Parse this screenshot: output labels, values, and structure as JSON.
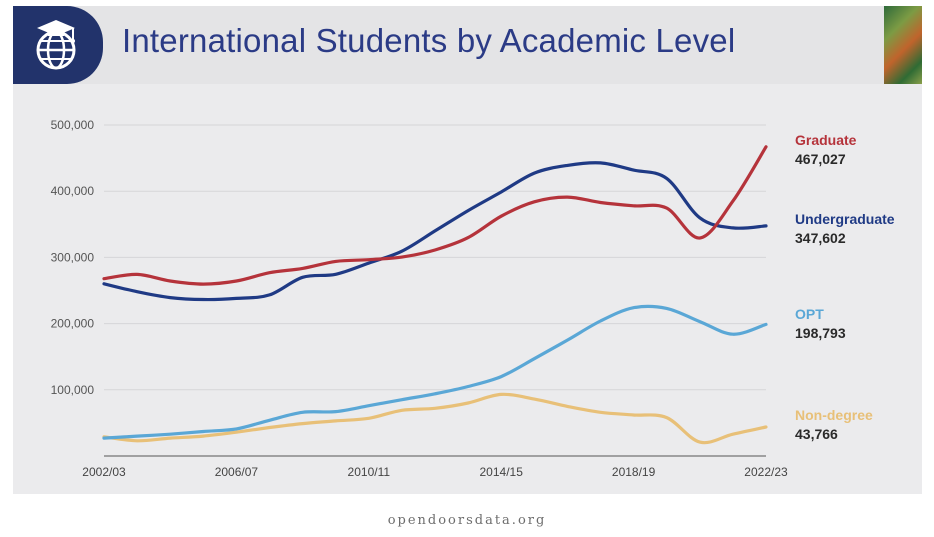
{
  "header": {
    "title": "International Students by Academic Level",
    "logo": "globe-graduation-cap-icon"
  },
  "footer": {
    "source": "opendoorsdata.org"
  },
  "chart_data": {
    "type": "line",
    "title": "International Students by Academic Level",
    "x": [
      "2002/03",
      "2003/04",
      "2004/05",
      "2005/06",
      "2006/07",
      "2007/08",
      "2008/09",
      "2009/10",
      "2010/11",
      "2011/12",
      "2012/13",
      "2013/14",
      "2014/15",
      "2015/16",
      "2016/17",
      "2017/18",
      "2018/19",
      "2019/20",
      "2020/21",
      "2021/22",
      "2022/23"
    ],
    "x_tick_labels": [
      "2002/03",
      "2006/07",
      "2010/11",
      "2014/15",
      "2018/19",
      "2022/23"
    ],
    "ylim": [
      0,
      500000
    ],
    "y_ticks": [
      100000,
      200000,
      300000,
      400000,
      500000
    ],
    "y_tick_labels": [
      "100,000",
      "200,000",
      "300,000",
      "400,000",
      "500,000"
    ],
    "grid": true,
    "legend": "end-labels-right",
    "series": [
      {
        "name": "Graduate",
        "color": "#b5333b",
        "end_label": "467,027",
        "values": [
          267876,
          274310,
          264410,
          259717,
          264288,
          276842,
          283329,
          293885,
          296574,
          300430,
          311204,
          329854,
          362228,
          383935,
          391124,
          382953,
          377943,
          374435,
          329272,
          385097,
          467027
        ]
      },
      {
        "name": "Undergraduate",
        "color": "#1f3a85",
        "end_label": "347,602",
        "values": [
          260103,
          248200,
          239212,
          236342,
          238050,
          243360,
          269874,
          274431,
          291439,
          309342,
          339993,
          370724,
          398824,
          427313,
          439019,
          442746,
          431930,
          419321,
          359787,
          344532,
          347602
        ]
      },
      {
        "name": "OPT",
        "color": "#5aa7d6",
        "end_label": "198,793",
        "values": [
          27000,
          30000,
          33000,
          37000,
          41000,
          54000,
          66000,
          67000,
          76000,
          85000,
          94000,
          105000,
          120000,
          147000,
          175000,
          204000,
          224000,
          223000,
          203000,
          184000,
          198793
        ]
      },
      {
        "name": "Non-degree",
        "color": "#e8c078",
        "end_label": "43,766",
        "values": [
          29000,
          23000,
          27000,
          30000,
          36000,
          43000,
          49000,
          53000,
          57000,
          69000,
          72000,
          80000,
          93000,
          86000,
          75000,
          66000,
          62000,
          58000,
          21000,
          33000,
          43766
        ]
      }
    ]
  }
}
